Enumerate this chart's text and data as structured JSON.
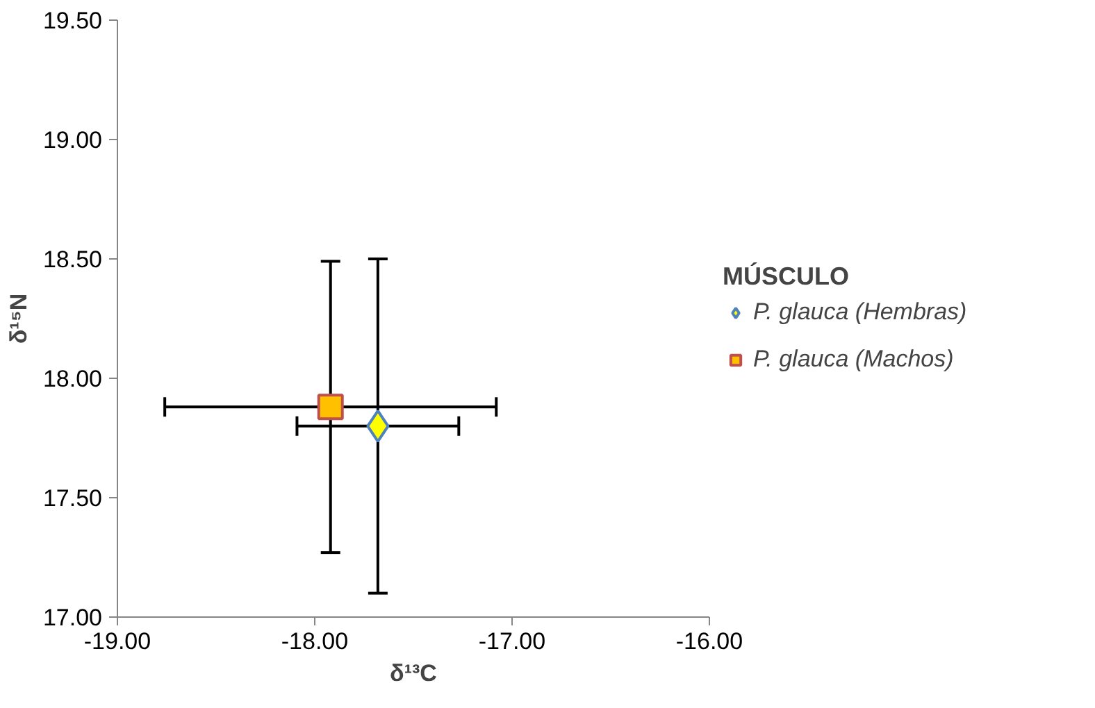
{
  "chart_data": {
    "type": "scatter",
    "xlabel": "δ¹³C",
    "ylabel": "δ¹⁵N",
    "legend_title": "MÚSCULO",
    "xlim": [
      -19,
      -16
    ],
    "xticks": [
      {
        "value": -19,
        "label": "-19.00"
      },
      {
        "value": -18,
        "label": "-18.00"
      },
      {
        "value": -17,
        "label": "-17.00"
      },
      {
        "value": -16,
        "label": "-16.00"
      }
    ],
    "ylim": [
      17,
      19.5
    ],
    "yticks": [
      {
        "value": 17,
        "label": "17.00"
      },
      {
        "value": 17.5,
        "label": "17.50"
      },
      {
        "value": 18,
        "label": "18.00"
      },
      {
        "value": 18.5,
        "label": "18.50"
      },
      {
        "value": 19,
        "label": "19.00"
      },
      {
        "value": 19.5,
        "label": "19.50"
      }
    ],
    "grid": false,
    "legend": "right",
    "series": [
      {
        "name": "P. glauca (Hembras)",
        "color": "#ffff00",
        "marker": "diamond",
        "x": [
          -17.68
        ],
        "values": [
          17.8
        ],
        "errors": [
          [
            17.1,
            18.5
          ]
        ],
        "xerrors": [
          [
            -18.09,
            -17.27
          ]
        ]
      },
      {
        "name": "P. glauca (Machos)",
        "color": "#ffc000",
        "marker": "square",
        "x": [
          -17.92
        ],
        "values": [
          17.88
        ],
        "errors": [
          [
            17.27,
            18.49
          ]
        ],
        "xerrors": [
          [
            -18.76,
            -17.08
          ]
        ]
      }
    ]
  }
}
